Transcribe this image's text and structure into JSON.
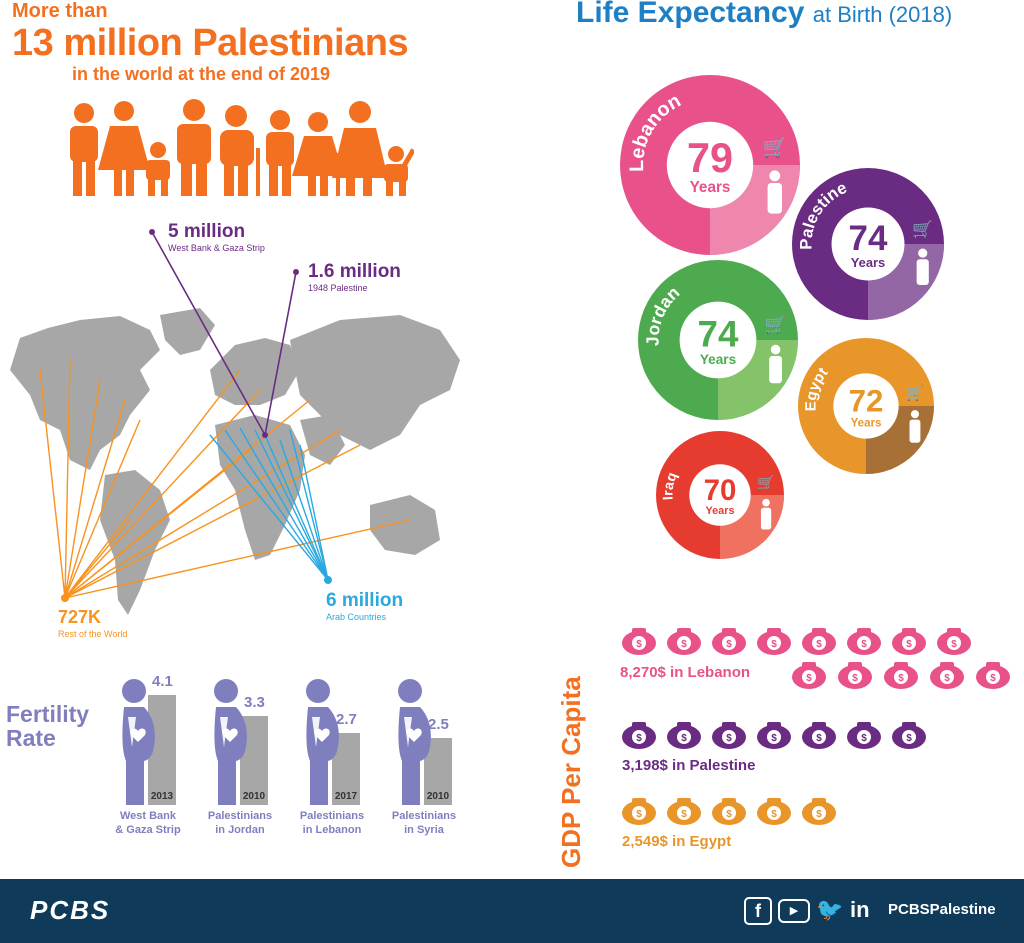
{
  "population": {
    "line1": "More than",
    "line2": "13 million Palestinians",
    "line3": "in the world at the end of 2019",
    "groups": [
      {
        "value": "5 million",
        "label": "West Bank & Gaza Strip"
      },
      {
        "value": "1.6 million",
        "label": "1948 Palestine"
      },
      {
        "value": "727K",
        "label": "Rest of the World"
      },
      {
        "value": "6 million",
        "label": "Arab Countries"
      }
    ]
  },
  "life_expectancy": {
    "title_bold": "Life Expectancy",
    "title_rest": "at Birth (2018)",
    "unit": "Years",
    "countries": [
      {
        "name": "Lebanon",
        "value": "79",
        "color": "#e8518a",
        "light": "#ef8fb3"
      },
      {
        "name": "Palestine",
        "value": "74",
        "color": "#6a2c82",
        "light": "#9a72ad"
      },
      {
        "name": "Jordan",
        "value": "74",
        "color": "#4daa4f",
        "light": "#8fc86e"
      },
      {
        "name": "Egypt",
        "value": "72",
        "color": "#e8962a",
        "light": "#9a6a3a"
      },
      {
        "name": "Iraq",
        "value": "70",
        "color": "#e63c2f",
        "light": "#f07b6a"
      }
    ]
  },
  "fertility": {
    "title1": "Fertility",
    "title2": "Rate",
    "items": [
      {
        "value": "4.1",
        "year": "2013",
        "label1": "West Bank",
        "label2": "& Gaza Strip",
        "num": 4.1
      },
      {
        "value": "3.3",
        "year": "2010",
        "label1": "Palestinians",
        "label2": "in Jordan",
        "num": 3.3
      },
      {
        "value": "2.7",
        "year": "2017",
        "label1": "Palestinians",
        "label2": "in Lebanon",
        "num": 2.7
      },
      {
        "value": "2.5",
        "year": "2010",
        "label1": "Palestinians",
        "label2": "in Syria",
        "num": 2.5
      }
    ]
  },
  "gdp": {
    "title": "GDP Per Capita",
    "items": [
      {
        "label": "8,270$ in Lebanon",
        "color": "#e8518a",
        "bags": 13
      },
      {
        "label": "3,198$ in Palestine",
        "color": "#6a2c82",
        "bags": 7
      },
      {
        "label": "2,549$ in Egypt",
        "color": "#e8962a",
        "bags": 5
      }
    ]
  },
  "footer": {
    "logo": "PCBS",
    "handle": "PCBSPalestine",
    "icons": [
      "facebook-icon",
      "youtube-icon",
      "twitter-icon",
      "linkedin-icon"
    ]
  },
  "colors": {
    "orange": "#f37021",
    "purple": "#6a2c82",
    "blue": "#2aa9e0",
    "navy": "#0f3a5a",
    "fertility": "#7f7fbf",
    "bar": "#a7a7a7"
  }
}
